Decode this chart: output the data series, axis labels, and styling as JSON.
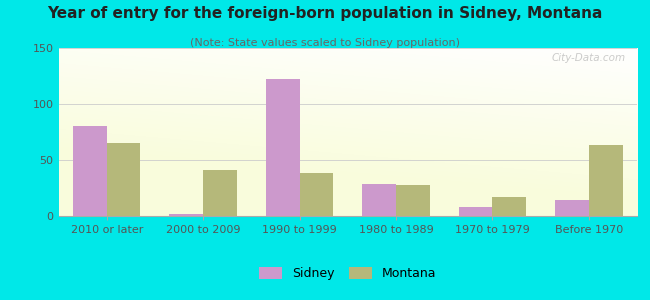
{
  "title": "Year of entry for the foreign-born population in Sidney, Montana",
  "subtitle": "(Note: State values scaled to Sidney population)",
  "categories": [
    "2010 or later",
    "2000 to 2009",
    "1990 to 1999",
    "1980 to 1989",
    "1970 to 1979",
    "Before 1970"
  ],
  "sidney_values": [
    80,
    2,
    122,
    29,
    8,
    14
  ],
  "montana_values": [
    65,
    41,
    38,
    28,
    17,
    63
  ],
  "sidney_color": "#cc99cc",
  "montana_color": "#b5b87a",
  "ylim": [
    0,
    150
  ],
  "yticks": [
    0,
    50,
    100,
    150
  ],
  "bar_width": 0.35,
  "background_outer": "#00e8e8",
  "watermark": "City-Data.com",
  "legend_sidney": "Sidney",
  "legend_montana": "Montana",
  "title_fontsize": 11,
  "subtitle_fontsize": 8,
  "tick_fontsize": 8
}
